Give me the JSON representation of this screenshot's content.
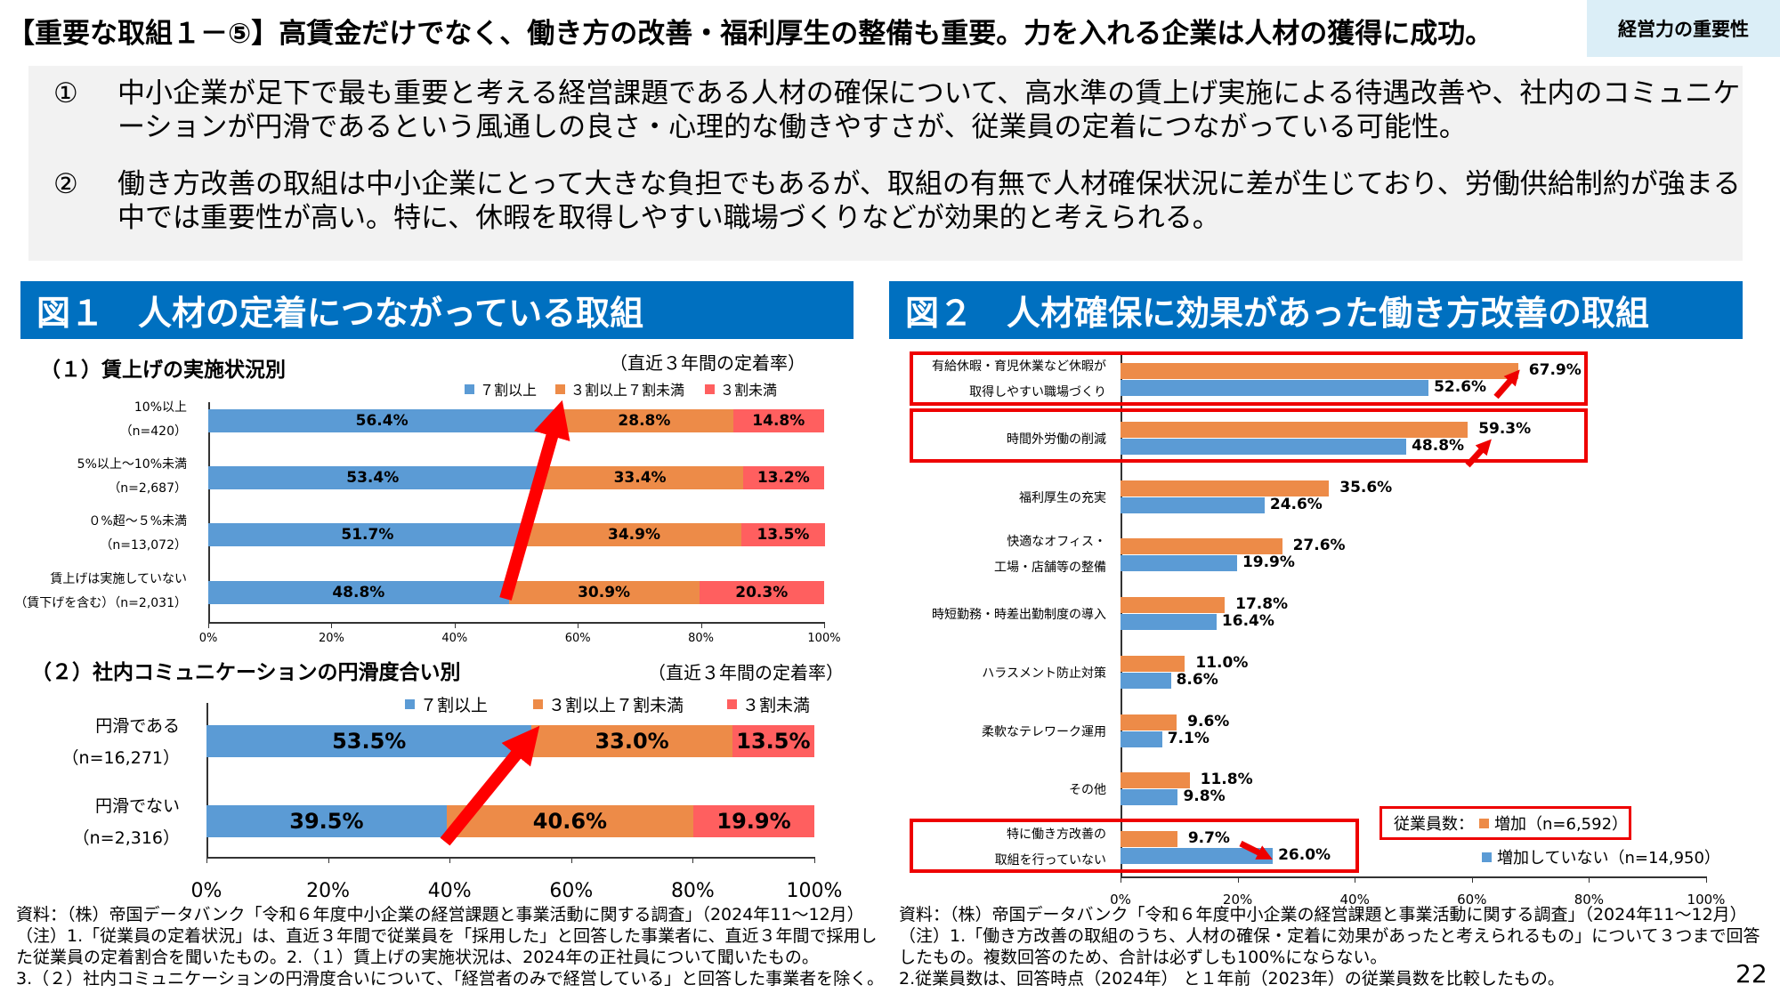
{
  "header": {
    "title": "【重要な取組１－⑤】高賃金だけでなく、働き方の改善・福利厚生の整備も重要。力を入れる企業は人材の獲得に成功。",
    "badge": "経営力の重要性"
  },
  "summary": [
    {
      "num": "①",
      "text": "中小企業が足下で最も重要と考える経営課題である人材の確保について、高水準の賃上げ実施による待遇改善や、社内のコミュニケーションが円滑であるという風通しの良さ・心理的な働きやすさが、従業員の定着につながっている可能性。"
    },
    {
      "num": "②",
      "text": "働き方改善の取組は中小企業にとって大きな負担でもあるが、取組の有無で人材確保状況に差が生じており、労働供給制約が強まる中では重要性が高い。特に、休暇を取得しやすい職場づくりなどが効果的と考えられる。"
    }
  ],
  "fig1": {
    "title": "図１　人材の定着につながっている取組",
    "sub1": "（１）賃上げの実施状況別",
    "sub2": "（２）社内コミュニケーションの円滑度合い別",
    "note": "（直近３年間の定着率）"
  },
  "fig2": {
    "title": "図２　人材確保に効果があった働き方改善の取組",
    "legend_title": "従業員数："
  },
  "colors": {
    "blue": "#5b9bd5",
    "orange": "#ed8b48",
    "red": "#ff5f5f",
    "header": "#0070c0"
  },
  "chart_data": [
    {
      "type": "bar",
      "stacked": true,
      "orientation": "horizontal",
      "categories": [
        [
          "10%以上",
          "（n=420）"
        ],
        [
          "5%以上～10%未満",
          "（n=2,687）"
        ],
        [
          "０%超～５%未満",
          "（n=13,072）"
        ],
        [
          "賃上げは実施していない",
          "（賃下げを含む）（n=2,031）"
        ]
      ],
      "series": [
        {
          "name": "７割以上",
          "values": [
            56.4,
            53.4,
            51.7,
            48.8
          ]
        },
        {
          "name": "３割以上７割未満",
          "values": [
            28.8,
            33.4,
            34.9,
            30.9
          ]
        },
        {
          "name": "３割未満",
          "values": [
            14.8,
            13.2,
            13.5,
            20.3
          ]
        }
      ],
      "xticks": [
        "0%",
        "20%",
        "40%",
        "60%",
        "80%",
        "100%"
      ],
      "xlim": [
        0,
        100
      ]
    },
    {
      "type": "bar",
      "stacked": true,
      "orientation": "horizontal",
      "categories": [
        [
          "円滑である",
          "（n=16,271）"
        ],
        [
          "円滑でない",
          "（n=2,316）"
        ]
      ],
      "series": [
        {
          "name": "７割以上",
          "values": [
            53.5,
            39.5
          ]
        },
        {
          "name": "３割以上７割未満",
          "values": [
            33.0,
            40.6
          ]
        },
        {
          "name": "３割未満",
          "values": [
            13.5,
            19.9
          ]
        }
      ],
      "xticks": [
        "0%",
        "20%",
        "40%",
        "60%",
        "80%",
        "100%"
      ],
      "xlim": [
        0,
        100
      ]
    },
    {
      "type": "bar",
      "orientation": "horizontal",
      "categories": [
        [
          "有給休暇・育児休業など休暇が",
          "取得しやすい職場づくり"
        ],
        [
          "時間外労働の削減"
        ],
        [
          "福利厚生の充実"
        ],
        [
          "快適なオフィス・",
          "工場・店舗等の整備"
        ],
        [
          "時短勤務・時差出勤制度の導入"
        ],
        [
          "ハラスメント防止対策"
        ],
        [
          "柔軟なテレワーク運用"
        ],
        [
          "その他"
        ],
        [
          "特に働き方改善の",
          "取組を行っていない"
        ]
      ],
      "series": [
        {
          "name": "増加（n=6,592）",
          "values": [
            67.9,
            59.3,
            35.6,
            27.6,
            17.8,
            11.0,
            9.6,
            11.8,
            9.7
          ]
        },
        {
          "name": "増加していない（n=14,950）",
          "values": [
            52.6,
            48.8,
            24.6,
            19.9,
            16.4,
            8.6,
            7.1,
            9.8,
            26.0
          ]
        }
      ],
      "xticks": [
        "0%",
        "20%",
        "40%",
        "60%",
        "80%",
        "100%"
      ],
      "xlim": [
        0,
        100
      ]
    }
  ],
  "footnotes": {
    "left": [
      "資料：（株）帝国データバンク「令和６年度中小企業の経営課題と事業活動に関する調査」（2024年11～12月）",
      "（注）1.「従業員の定着状況」は、直近３年間で従業員を「採用した」と回答した事業者に、直近３年間で採用し",
      "た従業員の定着割合を聞いたもの。2.（１）賃上げの実施状況は、2024年の正社員について聞いたもの。",
      "3.（２）社内コミュニケーションの円滑度合いについて、「経営者のみで経営している」と回答した事業者を除く。"
    ],
    "right": [
      "資料：（株）帝国データバンク「令和６年度中小企業の経営課題と事業活動に関する調査」（2024年11～12月）",
      "（注）1.「働き方改善の取組のうち、人材の確保・定着に効果があったと考えられるもの」について３つまで回答",
      "したもの。複数回答のため、合計は必ずしも100%にならない。",
      "2.従業員数は、回答時点（2024年） と１年前（2023年）の従業員数を比較したもの。"
    ]
  },
  "page_number": "22"
}
